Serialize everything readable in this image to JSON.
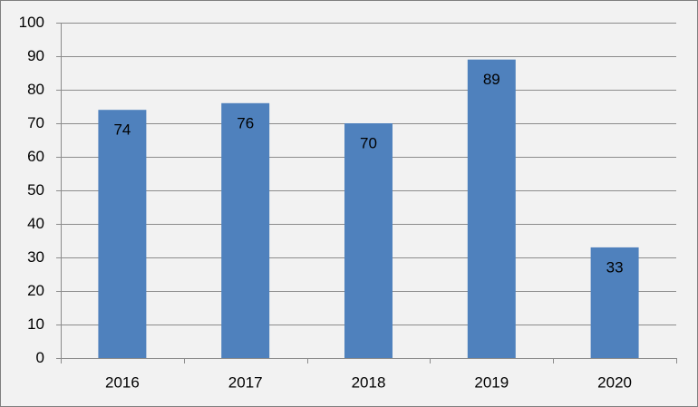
{
  "chart_data": {
    "type": "bar",
    "categories": [
      "2016",
      "2017",
      "2018",
      "2019",
      "2020"
    ],
    "values": [
      74,
      76,
      70,
      89,
      33
    ],
    "color": "#4f81bd",
    "ylim": [
      0,
      100
    ],
    "yticks": [
      0,
      10,
      20,
      30,
      40,
      50,
      60,
      70,
      80,
      90,
      100
    ],
    "grid": true
  }
}
